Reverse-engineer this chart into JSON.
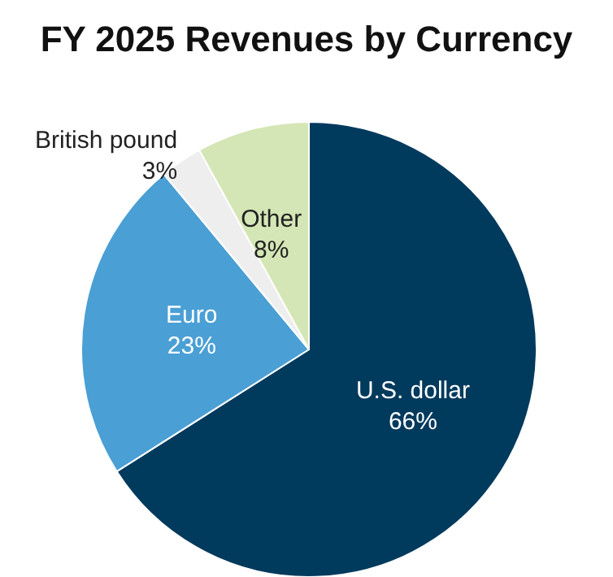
{
  "chart_data": {
    "type": "pie",
    "title": "FY 2025 Revenues by Currency",
    "categories": [
      "U.S. dollar",
      "Euro",
      "British pound",
      "Other"
    ],
    "values": [
      66,
      23,
      3,
      8
    ],
    "colors": [
      "#003a5d",
      "#4a9fd5",
      "#eeeeee",
      "#d4e6b5"
    ],
    "value_labels": [
      "66%",
      "23%",
      "3%",
      "8%"
    ],
    "legend": false
  }
}
